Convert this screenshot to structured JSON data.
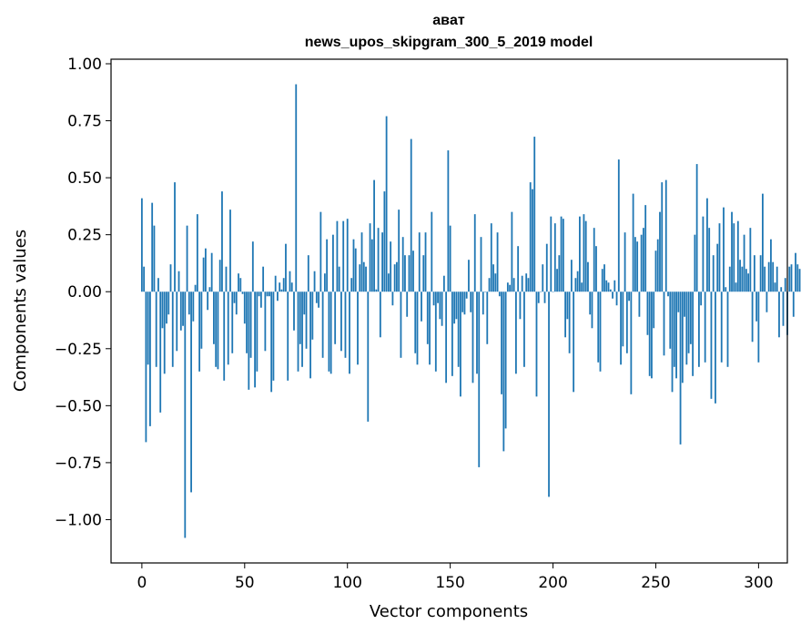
{
  "chart_data": {
    "type": "bar",
    "title_line1": "авaт",
    "title_line2": "news_upos_skipgram_300_5_2019 model",
    "xlabel": "Vector components",
    "ylabel": "Components values",
    "xlim": [
      -15,
      314
    ],
    "ylim": [
      -1.19,
      1.02
    ],
    "xticks": [
      0,
      50,
      100,
      150,
      200,
      250,
      300
    ],
    "xtick_labels": [
      "0",
      "50",
      "100",
      "150",
      "200",
      "250",
      "300"
    ],
    "yticks": [
      1.0,
      0.75,
      0.5,
      0.25,
      0.0,
      -0.25,
      -0.5,
      -0.75,
      -1.0
    ],
    "ytick_labels": [
      "1.00",
      "0.75",
      "0.50",
      "0.25",
      "0.00",
      "−0.25",
      "−0.50",
      "−0.75",
      "−1.00"
    ],
    "bar_color": "#1f77b4",
    "grid": false,
    "values": [
      0.41,
      0.11,
      -0.66,
      -0.32,
      -0.59,
      0.39,
      0.29,
      -0.33,
      0.06,
      -0.53,
      -0.16,
      -0.36,
      -0.14,
      -0.1,
      0.12,
      -0.33,
      0.48,
      -0.26,
      0.09,
      -0.17,
      -0.15,
      -1.08,
      0.29,
      -0.1,
      -0.88,
      -0.13,
      0.03,
      0.34,
      -0.35,
      -0.25,
      0.15,
      0.19,
      -0.08,
      0.02,
      0.17,
      -0.23,
      -0.33,
      -0.34,
      0.14,
      0.44,
      -0.39,
      0.11,
      -0.32,
      0.36,
      -0.27,
      -0.05,
      -0.1,
      0.08,
      0.06,
      -0.01,
      -0.14,
      -0.27,
      -0.43,
      -0.29,
      0.22,
      -0.42,
      -0.35,
      -0.02,
      -0.07,
      0.11,
      -0.26,
      -0.02,
      -0.02,
      -0.44,
      -0.39,
      0.07,
      -0.04,
      0.04,
      0.01,
      0.06,
      0.21,
      -0.39,
      0.09,
      0.04,
      -0.17,
      0.91,
      -0.35,
      -0.23,
      -0.33,
      -0.1,
      -0.25,
      0.16,
      -0.38,
      -0.21,
      0.09,
      -0.05,
      -0.07,
      0.35,
      -0.29,
      0.08,
      0.23,
      -0.35,
      -0.36,
      0.25,
      -0.23,
      0.31,
      0.11,
      -0.26,
      0.31,
      -0.29,
      0.32,
      -0.36,
      0.06,
      0.23,
      0.19,
      -0.32,
      0.12,
      0.26,
      0.13,
      0.11,
      -0.57,
      0.3,
      0.23,
      0.49,
      0.01,
      0.28,
      -0.2,
      0.26,
      0.44,
      0.77,
      0.08,
      0.22,
      -0.06,
      0.12,
      0.13,
      0.36,
      -0.29,
      0.24,
      0.16,
      -0.11,
      0.16,
      0.67,
      0.18,
      -0.27,
      -0.32,
      0.26,
      -0.13,
      0.16,
      0.26,
      -0.23,
      -0.32,
      0.35,
      -0.06,
      -0.35,
      -0.05,
      -0.12,
      -0.15,
      0.07,
      -0.4,
      0.62,
      0.29,
      -0.37,
      -0.14,
      -0.12,
      -0.33,
      -0.46,
      -0.09,
      -0.1,
      -0.03,
      0.14,
      -0.09,
      -0.4,
      0.34,
      -0.36,
      -0.77,
      0.24,
      -0.1,
      0.0,
      -0.23,
      0.06,
      0.3,
      0.12,
      0.08,
      0.26,
      -0.02,
      -0.45,
      -0.7,
      -0.6,
      0.04,
      0.03,
      0.35,
      0.06,
      -0.36,
      0.2,
      -0.12,
      0.07,
      -0.33,
      0.08,
      0.06,
      0.48,
      0.45,
      0.68,
      -0.46,
      -0.05,
      0.0,
      0.12,
      -0.05,
      0.21,
      -0.9,
      0.33,
      0.0,
      0.3,
      0.1,
      0.16,
      0.33,
      0.32,
      -0.2,
      -0.12,
      -0.27,
      0.14,
      -0.44,
      0.06,
      0.09,
      0.33,
      0.04,
      0.34,
      0.31,
      0.13,
      -0.1,
      -0.16,
      0.28,
      0.2,
      -0.31,
      -0.35,
      0.1,
      0.12,
      0.05,
      0.04,
      0.01,
      -0.03,
      0.05,
      -0.06,
      0.58,
      -0.32,
      -0.24,
      0.26,
      -0.27,
      -0.04,
      -0.45,
      0.43,
      0.24,
      0.22,
      -0.11,
      0.25,
      0.28,
      0.38,
      -0.19,
      -0.37,
      -0.38,
      -0.16,
      0.18,
      0.23,
      0.35,
      0.48,
      -0.28,
      0.49,
      -0.02,
      -0.25,
      -0.44,
      -0.33,
      -0.38,
      -0.09,
      -0.67,
      -0.4,
      -0.11,
      -0.32,
      -0.27,
      -0.23,
      -0.37,
      0.25,
      0.56,
      -0.33,
      -0.06,
      0.33,
      -0.31,
      0.41,
      0.28,
      -0.47,
      0.16,
      -0.49,
      0.21,
      0.3,
      -0.31,
      0.37,
      0.02,
      -0.33,
      0.11,
      0.35,
      0.3,
      0.04,
      0.31,
      0.14,
      0.11,
      0.25,
      0.1,
      0.08,
      0.28,
      -0.22,
      0.16,
      -0.13,
      -0.31,
      0.16,
      0.43,
      0.11,
      -0.09,
      0.13,
      0.23,
      0.13,
      0.04,
      0.11,
      -0.2,
      0.02,
      -0.15,
      0.06,
      -0.19,
      0.11,
      0.12,
      -0.11,
      0.17,
      0.12,
      0.1
    ]
  }
}
